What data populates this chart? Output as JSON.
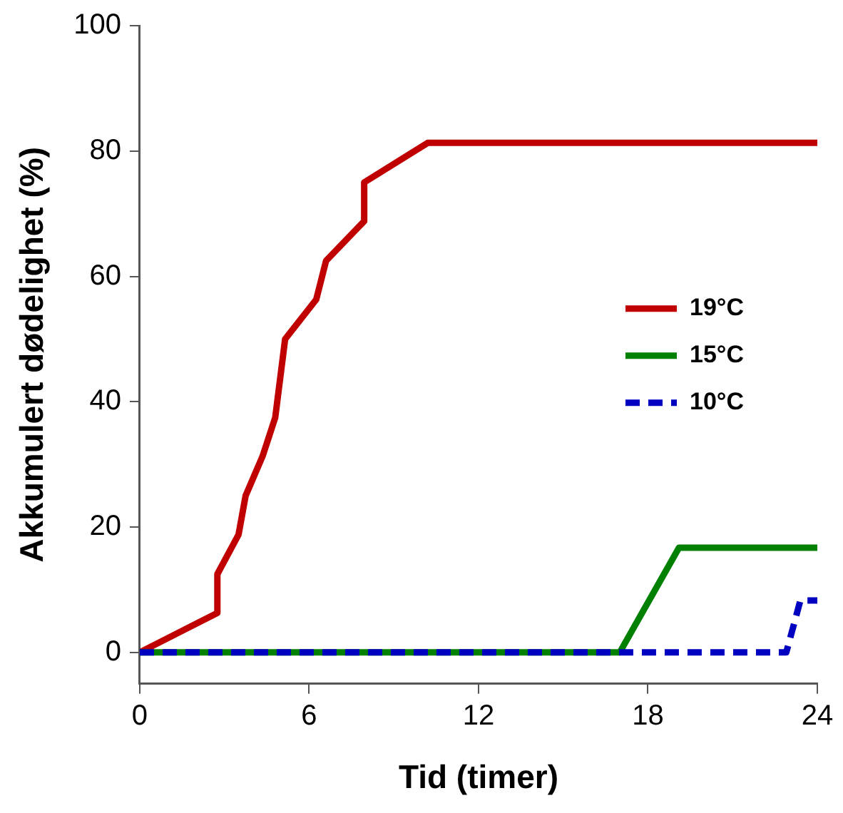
{
  "chart_data": {
    "type": "line",
    "xlabel": "Tid (timer)",
    "ylabel": "Akkumulert dødelighet (%)",
    "xlim": [
      0,
      24
    ],
    "xticks": [
      0,
      6,
      12,
      18,
      24
    ],
    "ylim": [
      -5,
      100
    ],
    "yticks": [
      0,
      20,
      40,
      60,
      80,
      100
    ],
    "grid": false,
    "legend": "right",
    "marker": "none",
    "series": [
      {
        "name": "19°C",
        "color": "#c00000",
        "line_style": "solid",
        "x": [
          0,
          2.75,
          2.75,
          3.5,
          3.75,
          4.35,
          4.8,
          5.15,
          6.25,
          6.6,
          7.95,
          7.95,
          10.2,
          24
        ],
        "values": [
          0,
          6.3,
          12.5,
          18.8,
          25,
          31.3,
          37.5,
          50,
          56.3,
          62.5,
          68.8,
          75,
          81.3,
          81.3
        ]
      },
      {
        "name": "15°C",
        "color": "#008000",
        "line_style": "solid",
        "x": [
          0,
          17,
          19.1,
          24
        ],
        "values": [
          0,
          0,
          16.7,
          16.7
        ]
      },
      {
        "name": "10°C",
        "color": "#0000c0",
        "line_style": "dashed",
        "x": [
          0,
          22.9,
          23.4,
          24
        ],
        "values": [
          0,
          0,
          8.3,
          8.3
        ]
      }
    ]
  }
}
